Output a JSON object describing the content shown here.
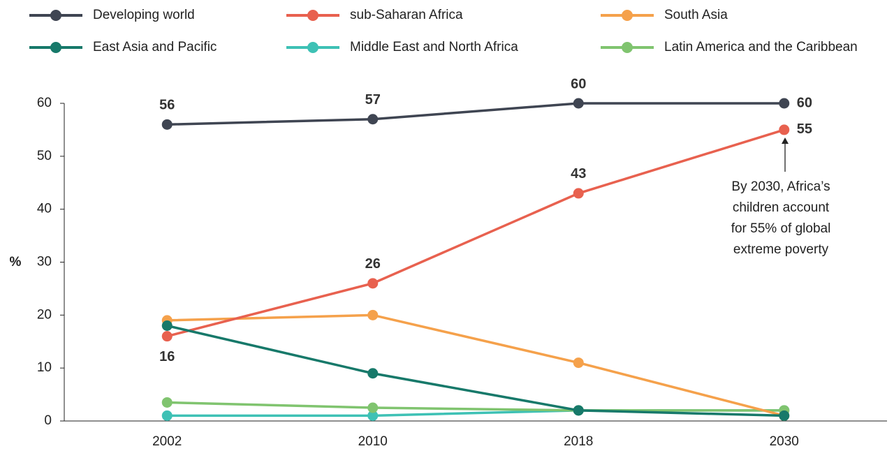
{
  "chart_data": {
    "type": "line",
    "y_axis_label": "%",
    "categories": [
      "2002",
      "2010",
      "2018",
      "2030"
    ],
    "ylim": [
      0,
      60
    ],
    "yticks": [
      0,
      10,
      20,
      30,
      40,
      50,
      60
    ],
    "grid": false,
    "series": [
      {
        "name": "Developing world",
        "color": "#3f4552",
        "values": [
          56,
          57,
          60,
          60
        ],
        "show_labels": true
      },
      {
        "name": "sub-Saharan Africa",
        "color": "#e8614f",
        "values": [
          16,
          26,
          43,
          55
        ],
        "show_labels": true
      },
      {
        "name": "South Asia",
        "color": "#f5a14b",
        "values": [
          19,
          20,
          11,
          1
        ]
      },
      {
        "name": "East Asia and Pacific",
        "color": "#17796a",
        "values": [
          18,
          9,
          2,
          1
        ]
      },
      {
        "name": "Middle East and North Africa",
        "color": "#3ec1b5",
        "values": [
          1,
          1,
          2,
          2
        ]
      },
      {
        "name": "Latin America and the Caribbean",
        "color": "#80c46f",
        "values": [
          3.5,
          2.5,
          2,
          2
        ]
      }
    ],
    "annotation": [
      "By 2030, Africa’s",
      "children account",
      "for 55% of global",
      "extreme poverty"
    ]
  }
}
